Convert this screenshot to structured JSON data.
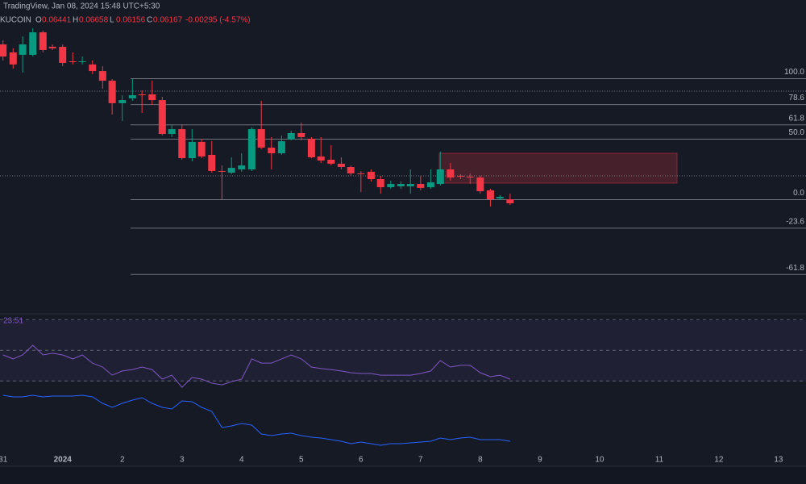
{
  "header": {
    "source": "TradingView, Jan 08, 2024 15:48 UTC+5:30",
    "exchange": "KUCOIN",
    "ohlc": [
      {
        "label": "O",
        "value": "0.06441"
      },
      {
        "label": "H",
        "value": "0.06658"
      },
      {
        "label": "L",
        "value": "0.06156"
      },
      {
        "label": "C",
        "value": "0.06167"
      }
    ],
    "change": "-0.00295 (-4.57%)"
  },
  "chart_data": [
    {
      "type": "candlestick",
      "up_color": "#089981",
      "down_color": "#f23645",
      "x": [
        0,
        0.17,
        0.33,
        0.5,
        0.67,
        0.83,
        1,
        1.17,
        1.33,
        1.5,
        1.67,
        1.83,
        2,
        2.17,
        2.33,
        2.5,
        2.67,
        2.83,
        3,
        3.17,
        3.33,
        3.5,
        3.67,
        3.83,
        4,
        4.17,
        4.33,
        4.5,
        4.67,
        4.83,
        5,
        5.17,
        5.33,
        5.5,
        5.67,
        5.83,
        6,
        6.17,
        6.33,
        6.5,
        6.67,
        6.83,
        7,
        7.17,
        7.33,
        7.5,
        7.67,
        7.83,
        8,
        8.17,
        8.33,
        8.5
      ],
      "open": [
        128.3,
        121.7,
        119.7,
        119.7,
        138.3,
        126.3,
        126.3,
        114.3,
        113.7,
        111.7,
        106.3,
        98.3,
        79.7,
        83.7,
        87,
        87,
        82.3,
        54.3,
        58.3,
        34.3,
        47.7,
        37,
        23.7,
        22.3,
        25,
        25,
        58.3,
        43,
        38.3,
        49.7,
        55,
        50.3,
        35.7,
        33,
        29.7,
        27,
        21.7,
        23,
        17,
        10.3,
        11,
        11,
        13,
        10.3,
        13,
        25,
        19.7,
        19,
        18.3,
        7.7,
        1,
        0.3
      ],
      "high": [
        131.7,
        125,
        135,
        141.7,
        139.7,
        128.3,
        128.3,
        121.7,
        118.3,
        115,
        110.3,
        99.7,
        86.3,
        99.7,
        90.3,
        98.3,
        85,
        61.7,
        61.7,
        58.3,
        50.3,
        48.3,
        28.3,
        35,
        38.3,
        59.7,
        81.7,
        51.7,
        53,
        57,
        63.7,
        51.7,
        51.7,
        45,
        35,
        28.3,
        23.7,
        25,
        19.7,
        15.7,
        15,
        25,
        19.7,
        25,
        39.7,
        30.3,
        21,
        21.7,
        19.7,
        9,
        3.7,
        5
      ],
      "low": [
        115,
        108.3,
        105,
        118.3,
        121.7,
        123.7,
        110.3,
        111.7,
        111.7,
        103.7,
        91.7,
        70.3,
        65,
        81.7,
        71.7,
        78.3,
        53,
        51.7,
        33,
        31.7,
        34.3,
        22.3,
        0,
        21,
        23,
        23.7,
        41.7,
        25,
        37,
        49,
        49,
        34.3,
        30.3,
        28.3,
        25,
        19.7,
        6.3,
        15,
        5,
        9,
        9,
        5,
        7.7,
        9,
        11.7,
        15.7,
        17,
        13,
        5,
        -5.7,
        -0.3,
        -4.3
      ],
      "close": [
        118.3,
        111.7,
        128.3,
        138.3,
        123.7,
        125,
        113,
        113.7,
        114.3,
        106.3,
        98.3,
        79.7,
        82.3,
        86.3,
        86.3,
        82.3,
        54.3,
        58.3,
        34.3,
        47.7,
        35.7,
        23.7,
        23,
        26.3,
        28.3,
        58.3,
        43,
        38.3,
        48.3,
        55,
        51.7,
        35,
        32.3,
        29.7,
        27,
        21.7,
        21,
        17,
        10.3,
        13,
        13,
        13,
        9.7,
        14.3,
        25,
        18.3,
        19,
        18.3,
        7,
        0.3,
        2.3,
        -3
      ],
      "ylim": [
        -95,
        165
      ],
      "yticks": [
        {
          "value": 100,
          "label": "100.0"
        },
        {
          "value": 78.6,
          "label": "78.6"
        },
        {
          "value": 61.8,
          "label": "61.8"
        },
        {
          "value": 50,
          "label": "50.0"
        },
        {
          "value": 0,
          "label": "0.0"
        },
        {
          "value": -23.6,
          "label": "-23.6"
        },
        {
          "value": -61.8,
          "label": "-61.8"
        }
      ],
      "xlim": [
        -0.05,
        13.46
      ],
      "xticks": [
        {
          "value": 0,
          "label": "31"
        },
        {
          "value": 1,
          "label": "2024"
        },
        2,
        3,
        4,
        5,
        6,
        7,
        8,
        9,
        10,
        11,
        12,
        13
      ]
    },
    {
      "type": "line",
      "annotations": [
        "23.51"
      ],
      "ylim": [
        27,
        77
      ],
      "yticks": [
        30,
        50,
        70
      ],
      "y2lim": [
        0,
        100
      ],
      "series": [
        {
          "color": "#7e57c2",
          "values": [
            47,
            44.4,
            47,
            53.3,
            47,
            48.1,
            47,
            44.4,
            47,
            41.7,
            39.1,
            33.8,
            36.5,
            37.5,
            39.1,
            37.5,
            31.2,
            33.8,
            25.9,
            32.3,
            31.2,
            28.6,
            27.5,
            29.6,
            31.2,
            44.4,
            41.7,
            41.7,
            44.4,
            47,
            44.4,
            39.1,
            38.1,
            37.5,
            36.5,
            35.4,
            34.9,
            34.9,
            33.8,
            33.8,
            33.8,
            33.8,
            34.9,
            36.5,
            43.3,
            39.1,
            40.2,
            40.2,
            35.4,
            32.8,
            33.8,
            31.2
          ]
        },
        {
          "color": "#2962ff",
          "axis": "y2",
          "values": [
            93.3,
            90.7,
            90.7,
            93.3,
            90.7,
            92,
            92,
            92,
            93.3,
            90.7,
            80,
            73.3,
            80,
            85.3,
            89.3,
            80,
            73.3,
            70.7,
            84,
            82.7,
            73.3,
            66.7,
            40,
            42.7,
            46.7,
            44,
            29.3,
            26.7,
            29.3,
            30.7,
            26.7,
            24,
            22.7,
            20,
            17.3,
            13.3,
            16,
            13.3,
            10.7,
            13.3,
            13.3,
            14.7,
            16,
            17.3,
            22.7,
            20,
            22.7,
            24,
            20,
            20,
            20,
            17.3
          ]
        }
      ]
    }
  ]
}
